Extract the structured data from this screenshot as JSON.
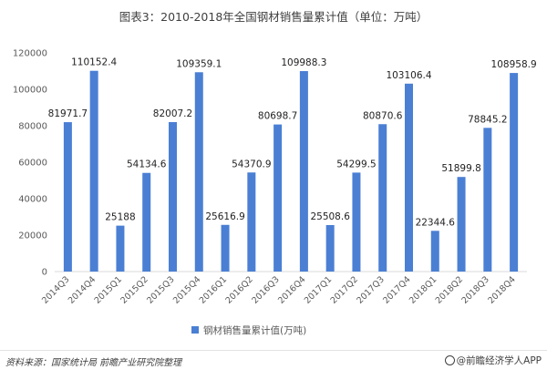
{
  "title": "图表3：2010-2018年全国钢材销售量累计值（单位：万吨）",
  "source_text": "资料来源：国家统计局 前瞻产业研究院整理",
  "brand_text": "@前瞻经济学人APP",
  "colors": {
    "bar": "#4a7fd4",
    "axis": "#d9d9d9",
    "grid": "#e6e6e6"
  },
  "chart_data": {
    "type": "bar",
    "title": "图表3：2010-2018年全国钢材销售量累计值（单位：万吨）",
    "xlabel": "",
    "ylabel": "",
    "ylim": [
      0,
      120000
    ],
    "yticks": [
      0,
      20000,
      40000,
      60000,
      80000,
      100000,
      120000
    ],
    "grid": false,
    "legend_position": "bottom",
    "categories": [
      "2014Q3",
      "2014Q4",
      "2015Q1",
      "2015Q2",
      "2015Q3",
      "2015Q4",
      "2016Q1",
      "2016Q2",
      "2016Q3",
      "2016Q4",
      "2017Q1",
      "2017Q2",
      "2017Q3",
      "2017Q4",
      "2018Q1",
      "2018Q2",
      "2018Q3",
      "2018Q4"
    ],
    "series": [
      {
        "name": "钢材销售量累计值(万吨)",
        "values": [
          81971.7,
          110152.4,
          25188,
          54134.6,
          82007.2,
          109359.1,
          25616.9,
          54370.9,
          80698.7,
          109988.3,
          25508.6,
          54299.5,
          80870.6,
          103106.4,
          22344.6,
          51899.8,
          78845.2,
          108958.9
        ],
        "labels": [
          "81971.7",
          "110152.4",
          "25188",
          "54134.6",
          "82007.2",
          "109359.1",
          "25616.9",
          "54370.9",
          "80698.7",
          "109988.3",
          "25508.6",
          "54299.5",
          "80870.6",
          "103106.4",
          "22344.6",
          "51899.8",
          "78845.2",
          "108958.9"
        ]
      }
    ]
  }
}
